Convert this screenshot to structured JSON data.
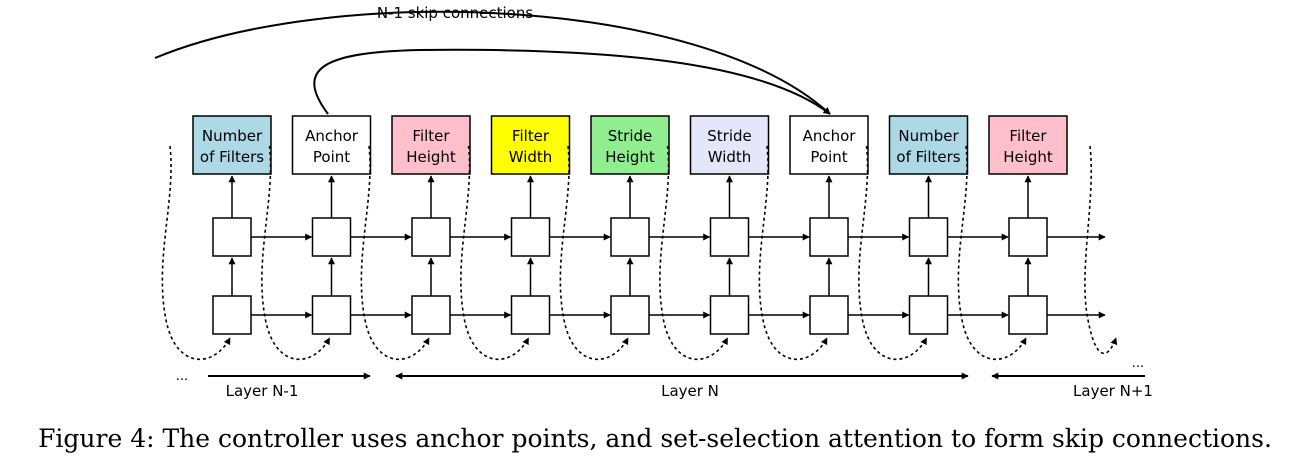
{
  "diagram": {
    "skip_label": "N-1 skip connections",
    "boxes": [
      {
        "lines": [
          "Number",
          "of Filters"
        ],
        "color": "#add8e6"
      },
      {
        "lines": [
          "Anchor",
          "Point"
        ],
        "color": "#ffffff"
      },
      {
        "lines": [
          "Filter",
          "Height"
        ],
        "color": "#ffc0cb"
      },
      {
        "lines": [
          "Filter",
          "Width"
        ],
        "color": "#ffff00"
      },
      {
        "lines": [
          "Stride",
          "Height"
        ],
        "color": "#90ee90"
      },
      {
        "lines": [
          "Stride",
          "Width"
        ],
        "color": "#e6e6fa"
      },
      {
        "lines": [
          "Anchor",
          "Point"
        ],
        "color": "#ffffff"
      },
      {
        "lines": [
          "Number",
          "of Filters"
        ],
        "color": "#add8e6"
      },
      {
        "lines": [
          "Filter",
          "Height"
        ],
        "color": "#ffc0cb"
      }
    ],
    "layers": [
      {
        "label": "Layer N-1"
      },
      {
        "label": "Layer N"
      },
      {
        "label": "Layer N+1"
      }
    ],
    "ellipsis_left": "...",
    "ellipsis_right": "..."
  },
  "caption": "Figure 4: The controller uses anchor points, and set-selection attention to form skip connections."
}
